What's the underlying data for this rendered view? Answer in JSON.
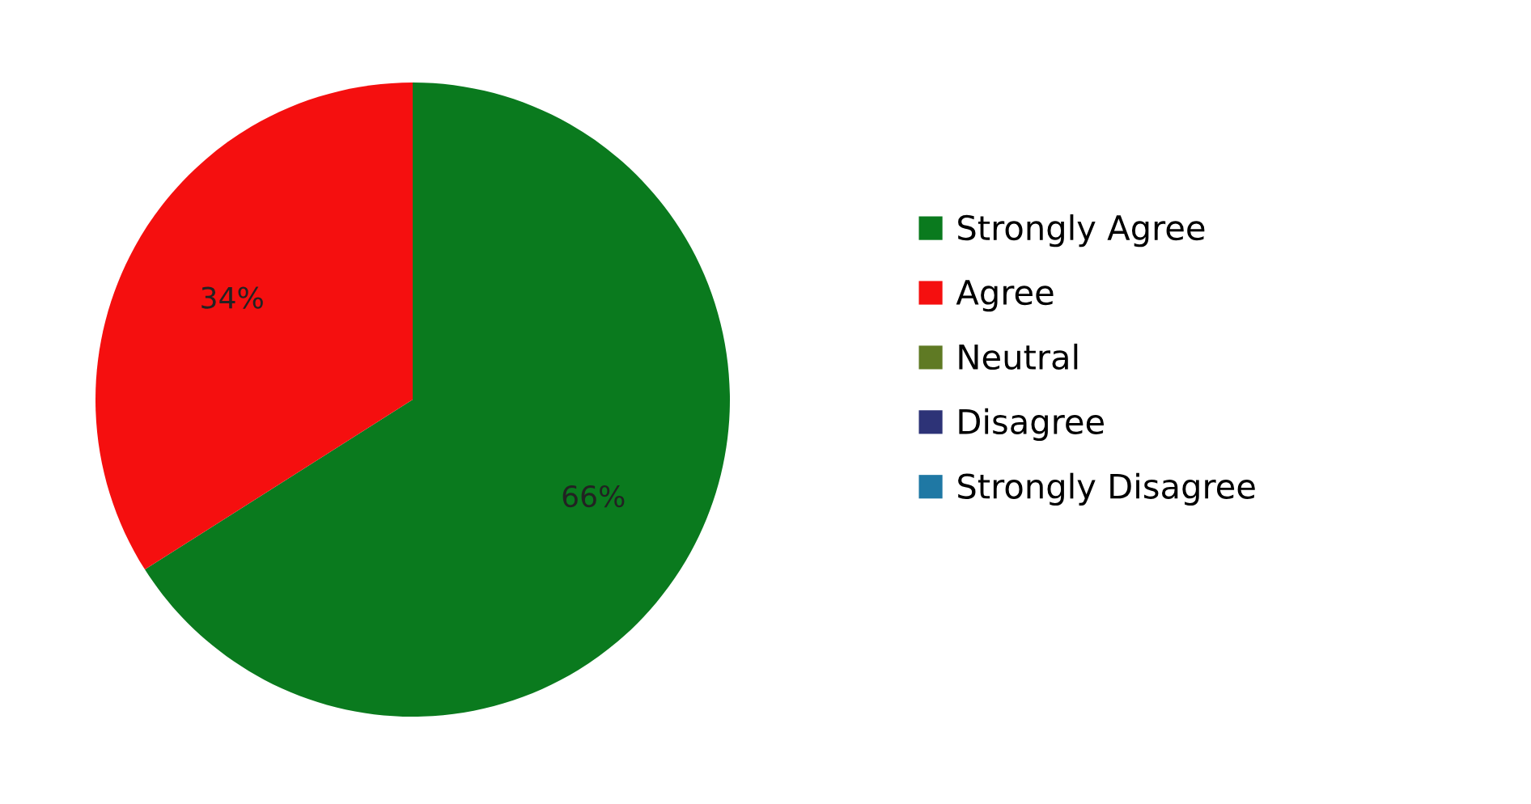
{
  "chart_data": {
    "type": "pie",
    "categories": [
      "Strongly Agree",
      "Agree",
      "Neutral",
      "Disagree",
      "Strongly Disagree"
    ],
    "values": [
      66,
      34,
      0,
      0,
      0
    ],
    "colors": [
      "#0a7a1e",
      "#f50f0f",
      "#5f7a24",
      "#2d3377",
      "#1f78a4"
    ],
    "value_labels": [
      "66%",
      "34%",
      null,
      null,
      null
    ],
    "legend": "right"
  }
}
